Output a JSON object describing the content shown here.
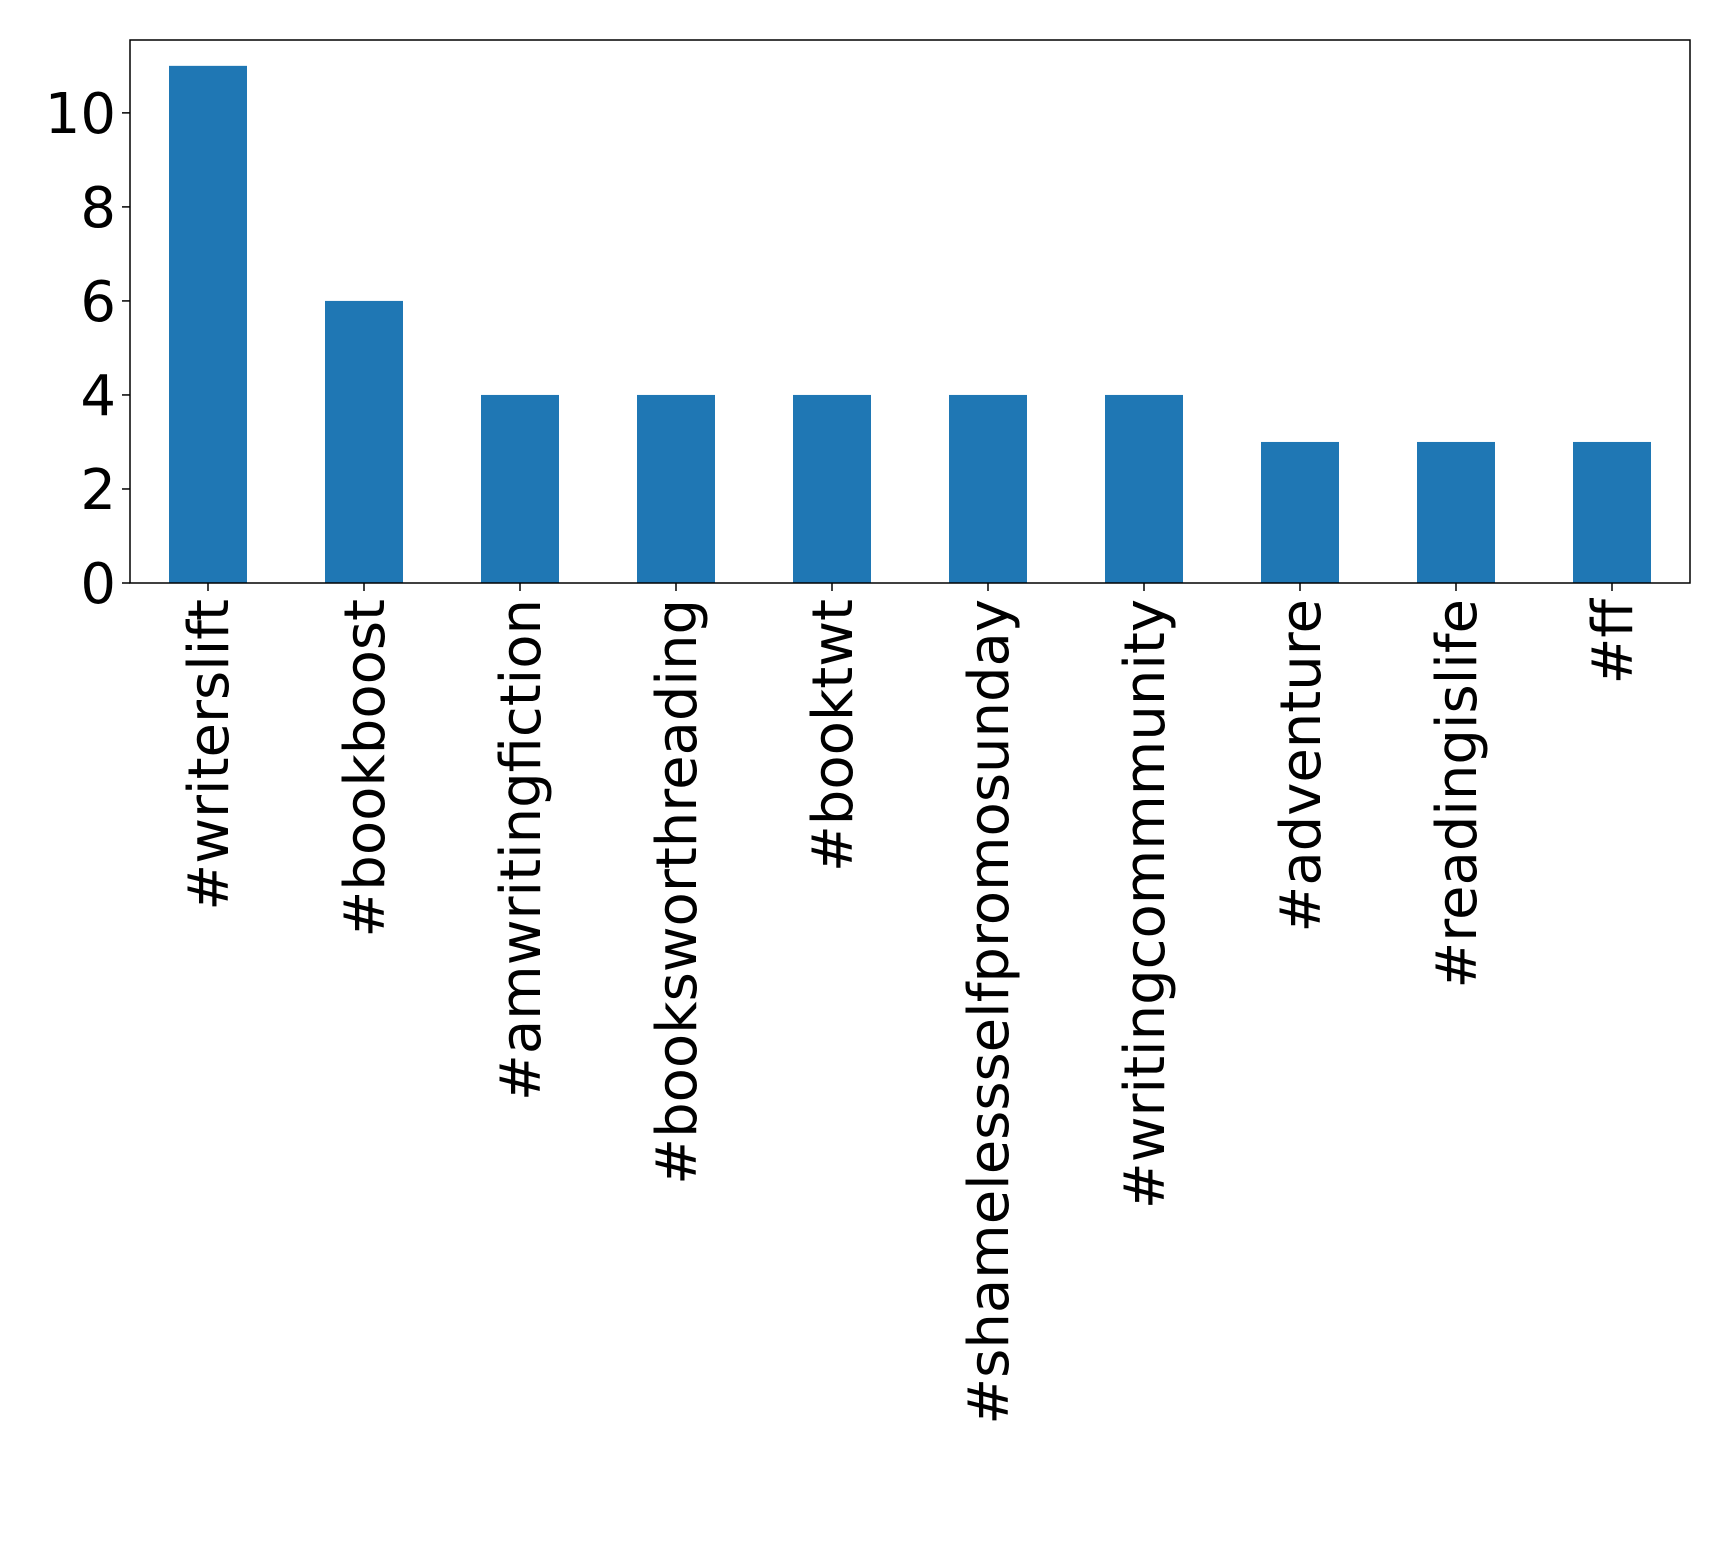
{
  "chart_data": {
    "type": "bar",
    "title": "",
    "xlabel": "",
    "ylabel": "",
    "categories": [
      "#writerslift",
      "#bookboost",
      "#amwritingfiction",
      "#booksworthreading",
      "#booktwt",
      "#shamelessselfpromosunday",
      "#writingcommmunity",
      "#adventure",
      "#readingislife",
      "#ff"
    ],
    "values": [
      11,
      6,
      4,
      4,
      4,
      4,
      4,
      3,
      3,
      3
    ],
    "ylim": [
      0,
      11.55
    ],
    "yticks": [
      0,
      2,
      4,
      6,
      8,
      10
    ],
    "bar_color": "#1f77b4",
    "grid": false,
    "legend": "none"
  }
}
